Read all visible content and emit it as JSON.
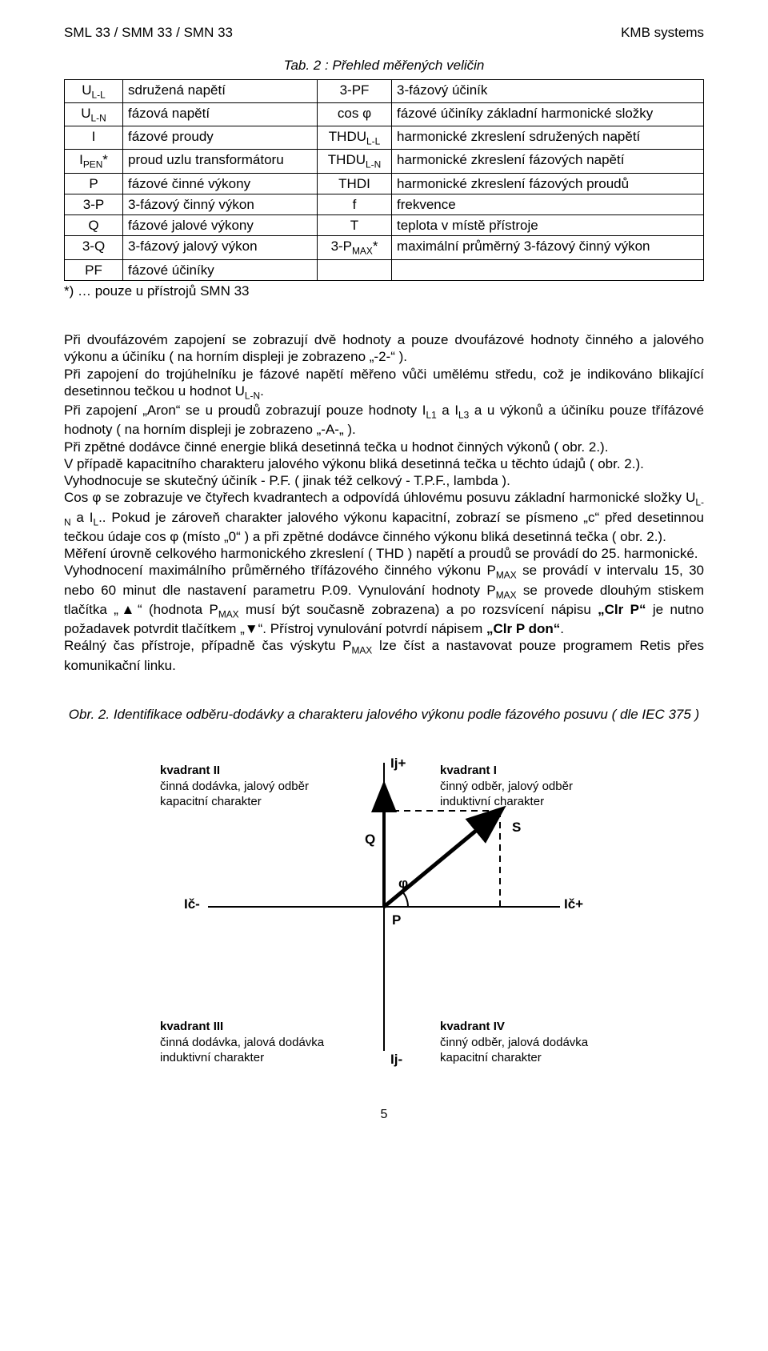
{
  "header": {
    "left": "SML 33 / SMM 33 / SMN 33",
    "right": "KMB systems"
  },
  "table": {
    "caption": "Tab. 2 : Přehled měřených veličin",
    "rows": [
      {
        "s1": "U",
        "sub1": "L-L",
        "d1": "sdružená napětí",
        "s2": "3-PF",
        "d2": "3-fázový účiník"
      },
      {
        "s1": "U",
        "sub1": "L-N",
        "d1": "fázová napětí",
        "s2": "cos φ",
        "d2": "fázové účiníky základní harmonické složky"
      },
      {
        "s1": "I",
        "sub1": "",
        "d1": "fázové proudy",
        "s2": "THDU",
        "sub2": "L-L",
        "d2": "harmonické zkreslení sdružených napětí"
      },
      {
        "s1": "I",
        "sub1": "PEN",
        "sup1": "*",
        "d1": "proud uzlu transformátoru",
        "s2": "THDU",
        "sub2": "L-N",
        "d2": "harmonické zkreslení fázových napětí"
      },
      {
        "s1": "P",
        "sub1": "",
        "d1": "fázové činné výkony",
        "s2": "THDI",
        "d2": "harmonické zkreslení fázových proudů"
      },
      {
        "s1": "3-P",
        "sub1": "",
        "d1": "3-fázový činný výkon",
        "s2": "f",
        "d2": "frekvence"
      },
      {
        "s1": "Q",
        "sub1": "",
        "d1": "fázové jalové výkony",
        "s2": "T",
        "d2": "teplota v místě přístroje"
      },
      {
        "s1": "3-Q",
        "sub1": "",
        "d1": "3-fázový jalový výkon",
        "s2": "3-P",
        "sub2": "MAX",
        "sup2": "*",
        "d2": "maximální průměrný 3-fázový činný výkon"
      },
      {
        "s1": "PF",
        "sub1": "",
        "d1": "fázové účiníky",
        "s2": "",
        "d2": ""
      }
    ],
    "note": "*) … pouze u přístrojů SMN 33"
  },
  "paragraphs": [
    "Při dvoufázovém zapojení se zobrazují dvě hodnoty a pouze dvoufázové hodnoty činného a jalového výkonu a účiníku ( na horním displeji je zobrazeno „-2-“ ).",
    "Při zapojení do trojúhelníku je fázové napětí měřeno vůči umělému středu, což je indikováno blikající desetinnou tečkou u hodnot U<sub>L-N</sub>.",
    "Při zapojení „Aron“ se u proudů zobrazují pouze hodnoty I<sub>L1</sub> a I<sub>L3</sub> a u výkonů a účiníku pouze třífázové hodnoty ( na horním displeji je zobrazeno „-A-„ ).",
    "Při zpětné dodávce činné energie bliká desetinná tečka u hodnot činných výkonů ( obr. 2.).",
    "V případě kapacitního charakteru jalového výkonu  bliká desetinná tečka u těchto údajů ( obr. 2.).",
    "Vyhodnocuje se skutečný účiník - P.F. ( jinak též celkový - T.P.F., lambda ).",
    "Cos φ se zobrazuje ve čtyřech kvadrantech a odpovídá úhlovému posuvu základní harmonické složky U<sub>L-N</sub> a I<sub>L</sub>.. Pokud je zároveň charakter jalového výkonu kapacitní, zobrazí se písmeno „c“ před desetinnou tečkou údaje cos φ (místo „0“ ) a při zpětné dodávce činného výkonu bliká desetinná tečka ( obr. 2.).",
    "Měření úrovně celkového harmonického zkreslení ( THD ) napětí a proudů se provádí do 25. harmonické.",
    "Vyhodnocení maximálního průměrného třífázového činného výkonu P<sub>MAX</sub> se provádí v intervalu 15, 30 nebo 60 minut dle nastavení parametru P.09. Vynulování hodnoty P<sub>MAX</sub> se provede dlouhým stiskem tlačítka „▲“ (hodnota P<sub>MAX</sub> musí být současně zobrazena) a po rozsvícení nápisu <b>„Clr P“</b> je nutno požadavek potvrdit tlačítkem „▼“. Přístroj vynulování potvrdí nápisem <b>„Clr P don“</b>.",
    "Reálný čas přístroje, případně čas výskytu P<sub>MAX</sub> lze číst a nastavovat pouze programem Retis přes komunikační linku."
  ],
  "figure": {
    "caption": "Obr. 2. Identifikace odběru-dodávky a charakteru jalového výkonu podle fázového posuvu ( dle IEC 375 )",
    "axes": {
      "top": "Ij+",
      "bottom": "Ij-",
      "left": "Ič-",
      "right": "Ič+",
      "q": "Q",
      "s": "S",
      "p": "P",
      "phi": "φ"
    },
    "quadrants": {
      "q1": {
        "title": "kvadrant I",
        "l1": "činný odběr, jalový odběr",
        "l2": "induktivní charakter"
      },
      "q2": {
        "title": "kvadrant II",
        "l1": "činná dodávka, jalový odběr",
        "l2": "kapacitní charakter"
      },
      "q3": {
        "title": "kvadrant III",
        "l1": "činná dodávka, jalová dodávka",
        "l2": "induktivní charakter"
      },
      "q4": {
        "title": "kvadrant IV",
        "l1": "činný odběr, jalová dodávka",
        "l2": "kapacitní charakter"
      }
    },
    "colors": {
      "axis": "#000000",
      "vector": "#000000",
      "dash": "#000000",
      "text": "#000000"
    }
  },
  "pagenum": "5"
}
